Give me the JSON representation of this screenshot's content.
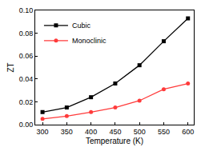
{
  "chart_data": {
    "type": "line",
    "x_label": "Temperature (K)",
    "y_label": "ZT",
    "x": [
      300,
      350,
      400,
      450,
      500,
      550,
      600
    ],
    "series": [
      {
        "name": "Cubic",
        "color": "#000000",
        "marker": "square",
        "line_style": "solid",
        "values": [
          0.011,
          0.015,
          0.024,
          0.036,
          0.052,
          0.073,
          0.093
        ]
      },
      {
        "name": "Monoclinic",
        "color": "#ff3b3b",
        "marker": "circle",
        "line_style": "solid",
        "values": [
          0.005,
          0.0075,
          0.011,
          0.015,
          0.021,
          0.031,
          0.036
        ]
      }
    ],
    "xlim": [
      285,
      612
    ],
    "xticks": [
      300,
      350,
      400,
      450,
      500,
      550,
      600
    ],
    "ylim": [
      0,
      0.1
    ],
    "yticks": [
      {
        "value": 0,
        "label": "0.00"
      },
      {
        "value": 0.02,
        "label": "0.02"
      },
      {
        "value": 0.04,
        "label": "0.04"
      },
      {
        "value": 0.06,
        "label": "0.06"
      },
      {
        "value": 0.08,
        "label": "0.08"
      },
      {
        "value": 0.1,
        "label": "0.10"
      }
    ],
    "grid": false,
    "legend": "top-left"
  }
}
